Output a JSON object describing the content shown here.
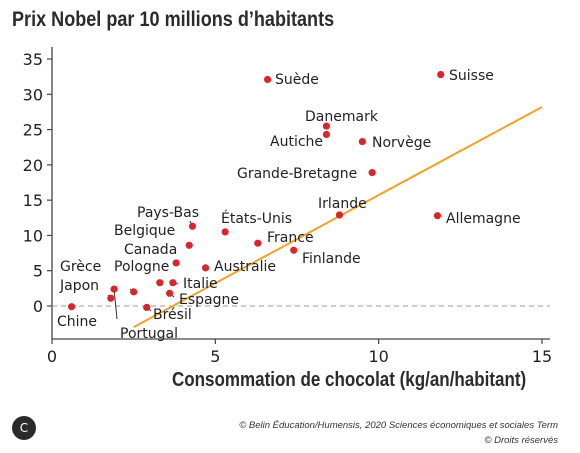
{
  "chart_data": {
    "type": "scatter",
    "title": "Prix Nobel par 10 millions d’habitants",
    "xlabel": "Consommation de chocolat (kg/an/habitant)",
    "ylabel": "",
    "xlim": [
      0,
      15
    ],
    "ylim": [
      -5,
      38
    ],
    "xticks": [
      0,
      5,
      10,
      15
    ],
    "yticks": [
      0,
      5,
      10,
      15,
      20,
      25,
      30,
      35
    ],
    "grid": false,
    "point_color": "#d9262a",
    "trend_color": "#f0a12a",
    "zero_line": "dashed",
    "trend_line": {
      "x": [
        2.5,
        15
      ],
      "y": [
        -3.0,
        28.2
      ]
    },
    "points": [
      {
        "label": "Suède",
        "x": 6.6,
        "y": 32.1
      },
      {
        "label": "Suisse",
        "x": 11.9,
        "y": 32.8
      },
      {
        "label": "Danemark",
        "x": 8.4,
        "y": 25.5
      },
      {
        "label": "Autiche",
        "x": 8.4,
        "y": 24.3
      },
      {
        "label": "Norvège",
        "x": 9.5,
        "y": 23.3
      },
      {
        "label": "Grande-Bretagne",
        "x": 9.8,
        "y": 18.9
      },
      {
        "label": "Irlande",
        "x": 8.8,
        "y": 12.9
      },
      {
        "label": "Allemagne",
        "x": 11.8,
        "y": 12.8
      },
      {
        "label": "Pays-Bas",
        "x": 4.3,
        "y": 11.3
      },
      {
        "label": "États-Unis",
        "x": 5.3,
        "y": 10.5
      },
      {
        "label": "Belgique",
        "x": 4.2,
        "y": 8.6
      },
      {
        "label": "France",
        "x": 6.3,
        "y": 8.9
      },
      {
        "label": "Canada",
        "x": 3.8,
        "y": 6.1
      },
      {
        "label": "Finlande",
        "x": 7.4,
        "y": 7.9
      },
      {
        "label": "Australie",
        "x": 4.7,
        "y": 5.4
      },
      {
        "label": "Pologne",
        "x": 3.3,
        "y": 3.3
      },
      {
        "label": "Italie",
        "x": 3.7,
        "y": 3.3
      },
      {
        "label": "Grèce",
        "x": 2.5,
        "y": 2.0
      },
      {
        "label": "Espagne",
        "x": 3.6,
        "y": 1.8
      },
      {
        "label": "Japon",
        "x": 1.8,
        "y": 1.1
      },
      {
        "label": "Brésil",
        "x": 2.9,
        "y": -0.2
      },
      {
        "label": "Portugal",
        "x": 1.9,
        "y": 2.4
      },
      {
        "label": "Chine",
        "x": 0.6,
        "y": -0.1
      }
    ]
  },
  "badge": "C",
  "credits": [
    "© Belin Éducation/Humensis, 2020 Sciences économiques et sociales Term",
    "© Droits réservés"
  ]
}
